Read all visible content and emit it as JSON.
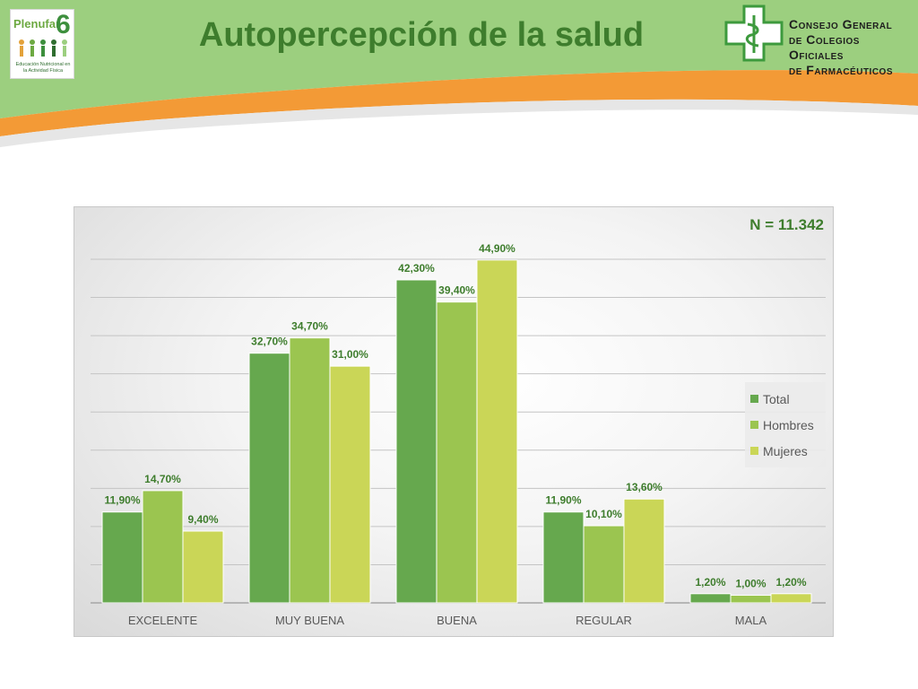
{
  "header": {
    "title": "Autopercepción de la salud",
    "left_logo": {
      "brand": "Plenufar",
      "number": "6",
      "caption": "Educación Nutricional en la Actividad Física"
    },
    "right_logo": {
      "line1": "Consejo General",
      "line2": "de Colegios Oficiales",
      "line3": "de Farmacéuticos"
    }
  },
  "colors": {
    "header_green": "#9ccf7f",
    "band_orange": "#f39a36",
    "total": "#66a84e",
    "hombres": "#9bc550",
    "mujeres": "#cad657",
    "label": "#3e7d2d",
    "axis_text": "#595959"
  },
  "chart_data": {
    "type": "bar",
    "annotation": "N = 11.342",
    "categories": [
      "EXCELENTE",
      "MUY BUENA",
      "BUENA",
      "REGULAR",
      "MALA"
    ],
    "series": [
      {
        "name": "Total",
        "values": [
          11.9,
          32.7,
          42.3,
          11.9,
          1.2
        ],
        "labels": [
          "11,90%",
          "32,70%",
          "42,30%",
          "11,90%",
          "1,20%"
        ]
      },
      {
        "name": "Hombres",
        "values": [
          14.7,
          34.7,
          39.4,
          10.1,
          1.0
        ],
        "labels": [
          "14,70%",
          "34,70%",
          "39,40%",
          "10,10%",
          "1,00%"
        ]
      },
      {
        "name": "Mujeres",
        "values": [
          9.4,
          31.0,
          44.9,
          13.6,
          1.2
        ],
        "labels": [
          "9,40%",
          "31,00%",
          "44,90%",
          "13,60%",
          "1,20%"
        ]
      }
    ],
    "ylim": [
      0,
      45
    ],
    "grid": true,
    "legend": "right"
  }
}
